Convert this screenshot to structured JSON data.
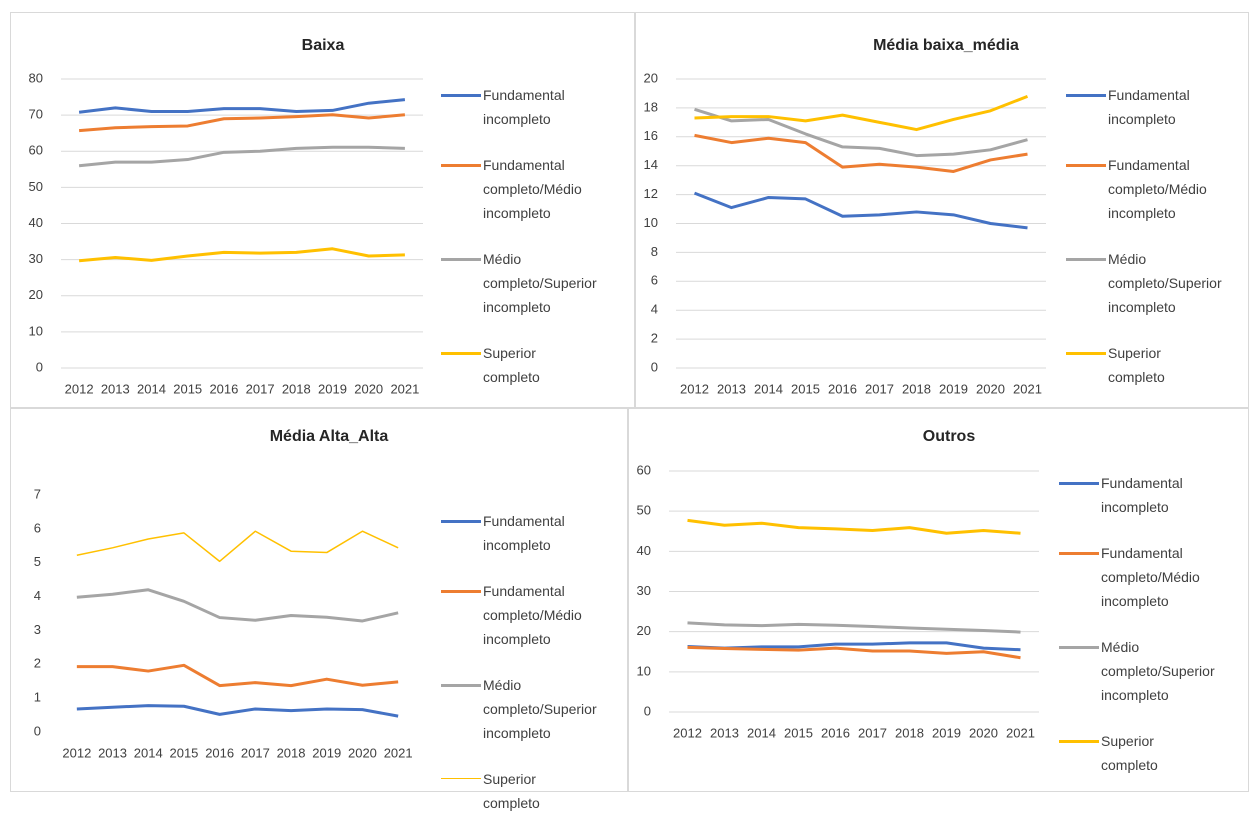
{
  "chart_data": [
    {
      "type": "line",
      "title": "Baixa",
      "categories": [
        "2012",
        "2013",
        "2014",
        "2015",
        "2016",
        "2017",
        "2018",
        "2019",
        "2020",
        "2021"
      ],
      "ylim": [
        0,
        80
      ],
      "yticks": [
        0,
        10,
        20,
        30,
        40,
        50,
        60,
        70,
        80
      ],
      "grid": true,
      "series": [
        {
          "name": "Fundamental incompleto",
          "color": "#4472c4",
          "values": [
            70.8,
            72,
            71,
            71,
            71.8,
            71.8,
            71,
            71.3,
            73.3,
            74.3
          ]
        },
        {
          "name": "Fundamental completo/Médio incompleto",
          "color": "#ed7d31",
          "values": [
            65.7,
            66.5,
            66.8,
            67,
            69,
            69.2,
            69.6,
            70.1,
            69.2,
            70.1
          ]
        },
        {
          "name": "Médio completo/Superior incompleto",
          "color": "#a5a5a5",
          "values": [
            56,
            57,
            57,
            57.7,
            59.7,
            60,
            60.8,
            61.1,
            61.1,
            60.8
          ]
        },
        {
          "name": "Superior completo",
          "color": "#ffc000",
          "values": [
            29.7,
            30.6,
            29.8,
            31,
            32,
            31.8,
            32,
            33,
            31,
            31.3
          ]
        }
      ]
    },
    {
      "type": "line",
      "title": "Média baixa_média",
      "categories": [
        "2012",
        "2013",
        "2014",
        "2015",
        "2016",
        "2017",
        "2018",
        "2019",
        "2020",
        "2021"
      ],
      "ylim": [
        0,
        20
      ],
      "yticks": [
        0,
        2,
        4,
        6,
        8,
        10,
        12,
        14,
        16,
        18,
        20
      ],
      "grid": true,
      "series": [
        {
          "name": "Fundamental incompleto",
          "color": "#4472c4",
          "values": [
            12.1,
            11.1,
            11.8,
            11.7,
            10.5,
            10.6,
            10.8,
            10.6,
            10,
            9.7
          ]
        },
        {
          "name": "Fundamental completo/Médio incompleto",
          "color": "#ed7d31",
          "values": [
            16.1,
            15.6,
            15.9,
            15.6,
            13.9,
            14.1,
            13.9,
            13.6,
            14.4,
            14.8
          ]
        },
        {
          "name": "Médio completo/Superior incompleto",
          "color": "#a5a5a5",
          "values": [
            17.9,
            17.1,
            17.2,
            16.2,
            15.3,
            15.2,
            14.7,
            14.8,
            15.1,
            15.8
          ]
        },
        {
          "name": "Superior completo",
          "color": "#ffc000",
          "values": [
            17.3,
            17.4,
            17.4,
            17.1,
            17.5,
            17,
            16.5,
            17.2,
            17.8,
            18.8
          ]
        }
      ]
    },
    {
      "type": "line",
      "title": "Média Alta_Alta",
      "categories": [
        "2012",
        "2013",
        "2014",
        "2015",
        "2016",
        "2017",
        "2018",
        "2019",
        "2020",
        "2021"
      ],
      "ylim": [
        0,
        7
      ],
      "yticks": [
        0,
        1,
        2,
        3,
        4,
        5,
        6,
        7
      ],
      "grid": false,
      "series": [
        {
          "name": "Fundamental incompleto",
          "color": "#4472c4",
          "values": [
            0.68,
            0.73,
            0.78,
            0.76,
            0.52,
            0.68,
            0.63,
            0.68,
            0.66,
            0.47
          ]
        },
        {
          "name": "Fundamental completo/Médio incompleto",
          "color": "#ed7d31",
          "values": [
            1.93,
            1.93,
            1.8,
            1.97,
            1.37,
            1.46,
            1.37,
            1.56,
            1.38,
            1.48
          ]
        },
        {
          "name": "Médio completo/Superior incompleto",
          "color": "#a5a5a5",
          "values": [
            3.98,
            4.07,
            4.2,
            3.86,
            3.38,
            3.3,
            3.44,
            3.39,
            3.28,
            3.52
          ]
        },
        {
          "name": "Superior completo",
          "color": "#ffc000",
          "line_width": 1.5,
          "values": [
            5.22,
            5.44,
            5.7,
            5.88,
            5.04,
            5.93,
            5.34,
            5.3,
            5.93,
            5.44
          ]
        }
      ]
    },
    {
      "type": "line",
      "title": "Outros",
      "categories": [
        "2012",
        "2013",
        "2014",
        "2015",
        "2016",
        "2017",
        "2018",
        "2019",
        "2020",
        "2021"
      ],
      "ylim": [
        0,
        60
      ],
      "yticks": [
        0,
        10,
        20,
        30,
        40,
        50,
        60
      ],
      "grid": true,
      "series": [
        {
          "name": "Fundamental incompleto",
          "color": "#4472c4",
          "values": [
            16.3,
            15.9,
            16.2,
            16.2,
            16.9,
            16.9,
            17.2,
            17.2,
            15.9,
            15.5
          ]
        },
        {
          "name": "Fundamental completo/Médio incompleto",
          "color": "#ed7d31",
          "values": [
            16.1,
            15.8,
            15.6,
            15.4,
            15.9,
            15.2,
            15.2,
            14.6,
            15,
            13.5
          ]
        },
        {
          "name": "Médio completo/Superior incompleto",
          "color": "#a5a5a5",
          "values": [
            22.2,
            21.7,
            21.5,
            21.8,
            21.6,
            21.3,
            20.9,
            20.6,
            20.3,
            19.9
          ]
        },
        {
          "name": "Superior completo",
          "color": "#ffc000",
          "values": [
            47.7,
            46.5,
            47,
            45.9,
            45.6,
            45.2,
            45.9,
            44.5,
            45.2,
            44.5
          ]
        }
      ]
    }
  ]
}
